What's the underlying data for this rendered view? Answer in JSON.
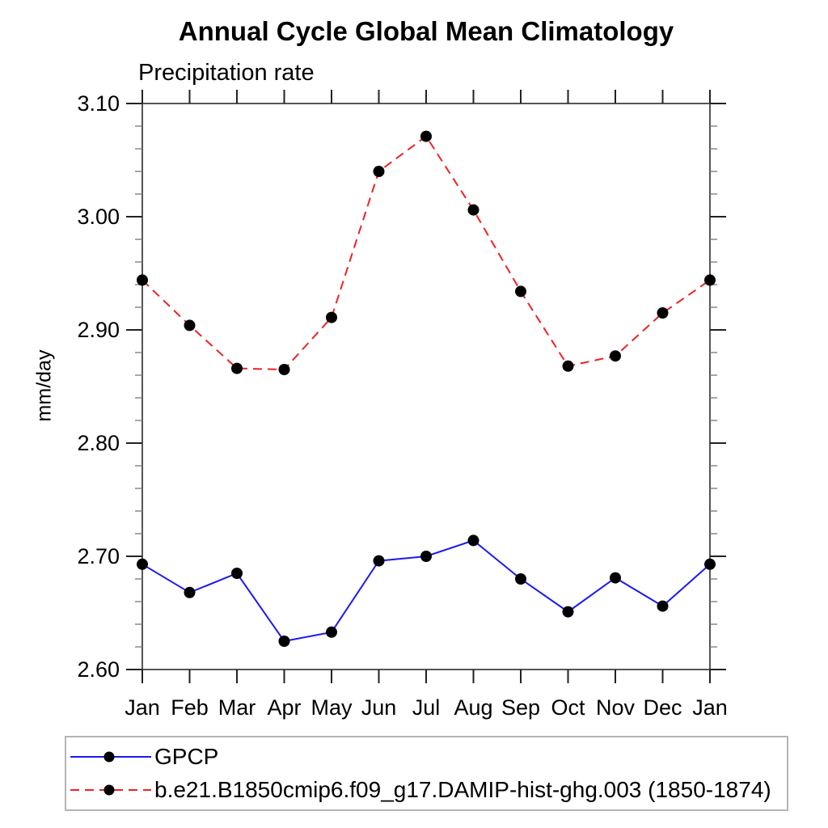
{
  "chart_data": {
    "type": "line",
    "title": "Annual Cycle Global Mean Climatology",
    "subtitle": "Precipitation rate",
    "xlabel": "",
    "ylabel": "mm/day",
    "categories": [
      "Jan",
      "Feb",
      "Mar",
      "Apr",
      "May",
      "Jun",
      "Jul",
      "Aug",
      "Sep",
      "Oct",
      "Nov",
      "Dec",
      "Jan"
    ],
    "ylim": [
      2.6,
      3.1
    ],
    "y_tick_values": [
      2.6,
      2.7,
      2.8,
      2.9,
      3.0,
      3.1
    ],
    "y_tick_labels": [
      "2.60",
      "2.70",
      "2.80",
      "2.90",
      "3.00",
      "3.10"
    ],
    "y_minor_step": 0.02,
    "grid": "off",
    "legend_position": "bottom-left-box",
    "axis_color": "#555555",
    "tick_color": "#222222",
    "marker_color": "#000000",
    "series": [
      {
        "name": "GPCP",
        "color": "#1a1af0",
        "line_style": "solid",
        "marker": "filled-circle",
        "values": [
          2.693,
          2.668,
          2.685,
          2.625,
          2.633,
          2.696,
          2.7,
          2.714,
          2.68,
          2.651,
          2.681,
          2.656,
          2.693
        ]
      },
      {
        "name": "b.e21.B1850cmip6.f09_g17.DAMIP-hist-ghg.003 (1850-1874)",
        "color": "#ee2222",
        "line_style": "dashed",
        "marker": "filled-circle",
        "values": [
          2.944,
          2.904,
          2.866,
          2.865,
          2.911,
          3.04,
          3.071,
          3.006,
          2.934,
          2.868,
          2.877,
          2.915,
          2.944
        ]
      }
    ]
  }
}
